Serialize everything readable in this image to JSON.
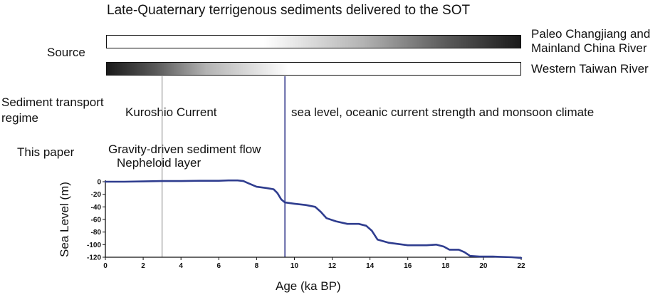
{
  "title": "Late-Quaternary terrigenous sediments delivered to the SOT",
  "source_label": "Source",
  "source_bars": [
    {
      "label_line1": "Paleo Changjiang and",
      "label_line2": "Mainland China River"
    },
    {
      "label": "Western Taiwan River"
    }
  ],
  "transport": {
    "label_line1": "Sediment transport",
    "label_line2": "regime",
    "left_text": "Kuroshio Current",
    "right_text": "sea level, oceanic current strength and monsoon climate"
  },
  "this_paper": {
    "label": "This paper",
    "line1": "Gravity-driven sediment flow",
    "line2": "Nepheloid layer"
  },
  "colors": {
    "curve": "#2f3d8f",
    "divider_line": "#3a3f8f",
    "gray_line": "#9a9a9a"
  },
  "chart_data": {
    "type": "line",
    "xlabel": "Age (ka BP)",
    "ylabel": "Sea Level (m)",
    "xlim": [
      0,
      22
    ],
    "ylim": [
      -120,
      0
    ],
    "xticks": [
      0,
      2,
      4,
      6,
      8,
      10,
      12,
      14,
      16,
      18,
      20,
      22
    ],
    "yticks": [
      0,
      -20,
      -40,
      -60,
      -80,
      -100,
      -120
    ],
    "x": [
      0,
      1,
      2,
      3,
      4,
      5,
      6,
      6.5,
      7,
      7.3,
      7.6,
      8,
      8.5,
      8.9,
      9.1,
      9.3,
      9.5,
      10,
      10.6,
      11.1,
      11.4,
      11.7,
      12.2,
      12.8,
      13.4,
      13.8,
      14.1,
      14.4,
      15,
      16,
      17,
      17.5,
      17.9,
      18.2,
      18.7,
      19.0,
      19.3,
      19.8,
      20.5,
      21.5,
      22
    ],
    "y": [
      0,
      0,
      0.5,
      1,
      1,
      1.5,
      1.5,
      2,
      2,
      1,
      -3,
      -8,
      -10,
      -12,
      -18,
      -28,
      -33,
      -35,
      -37,
      -40,
      -48,
      -58,
      -63,
      -67,
      -67,
      -70,
      -78,
      -92,
      -97,
      -101,
      -101,
      -100,
      -103,
      -108,
      -108,
      -112,
      -118,
      -119,
      -119,
      -120,
      -121
    ],
    "vlines": [
      {
        "x": 3,
        "color": "#9a9a9a"
      },
      {
        "x": 9.5,
        "color": "#3a3f8f"
      }
    ],
    "grid": false
  }
}
